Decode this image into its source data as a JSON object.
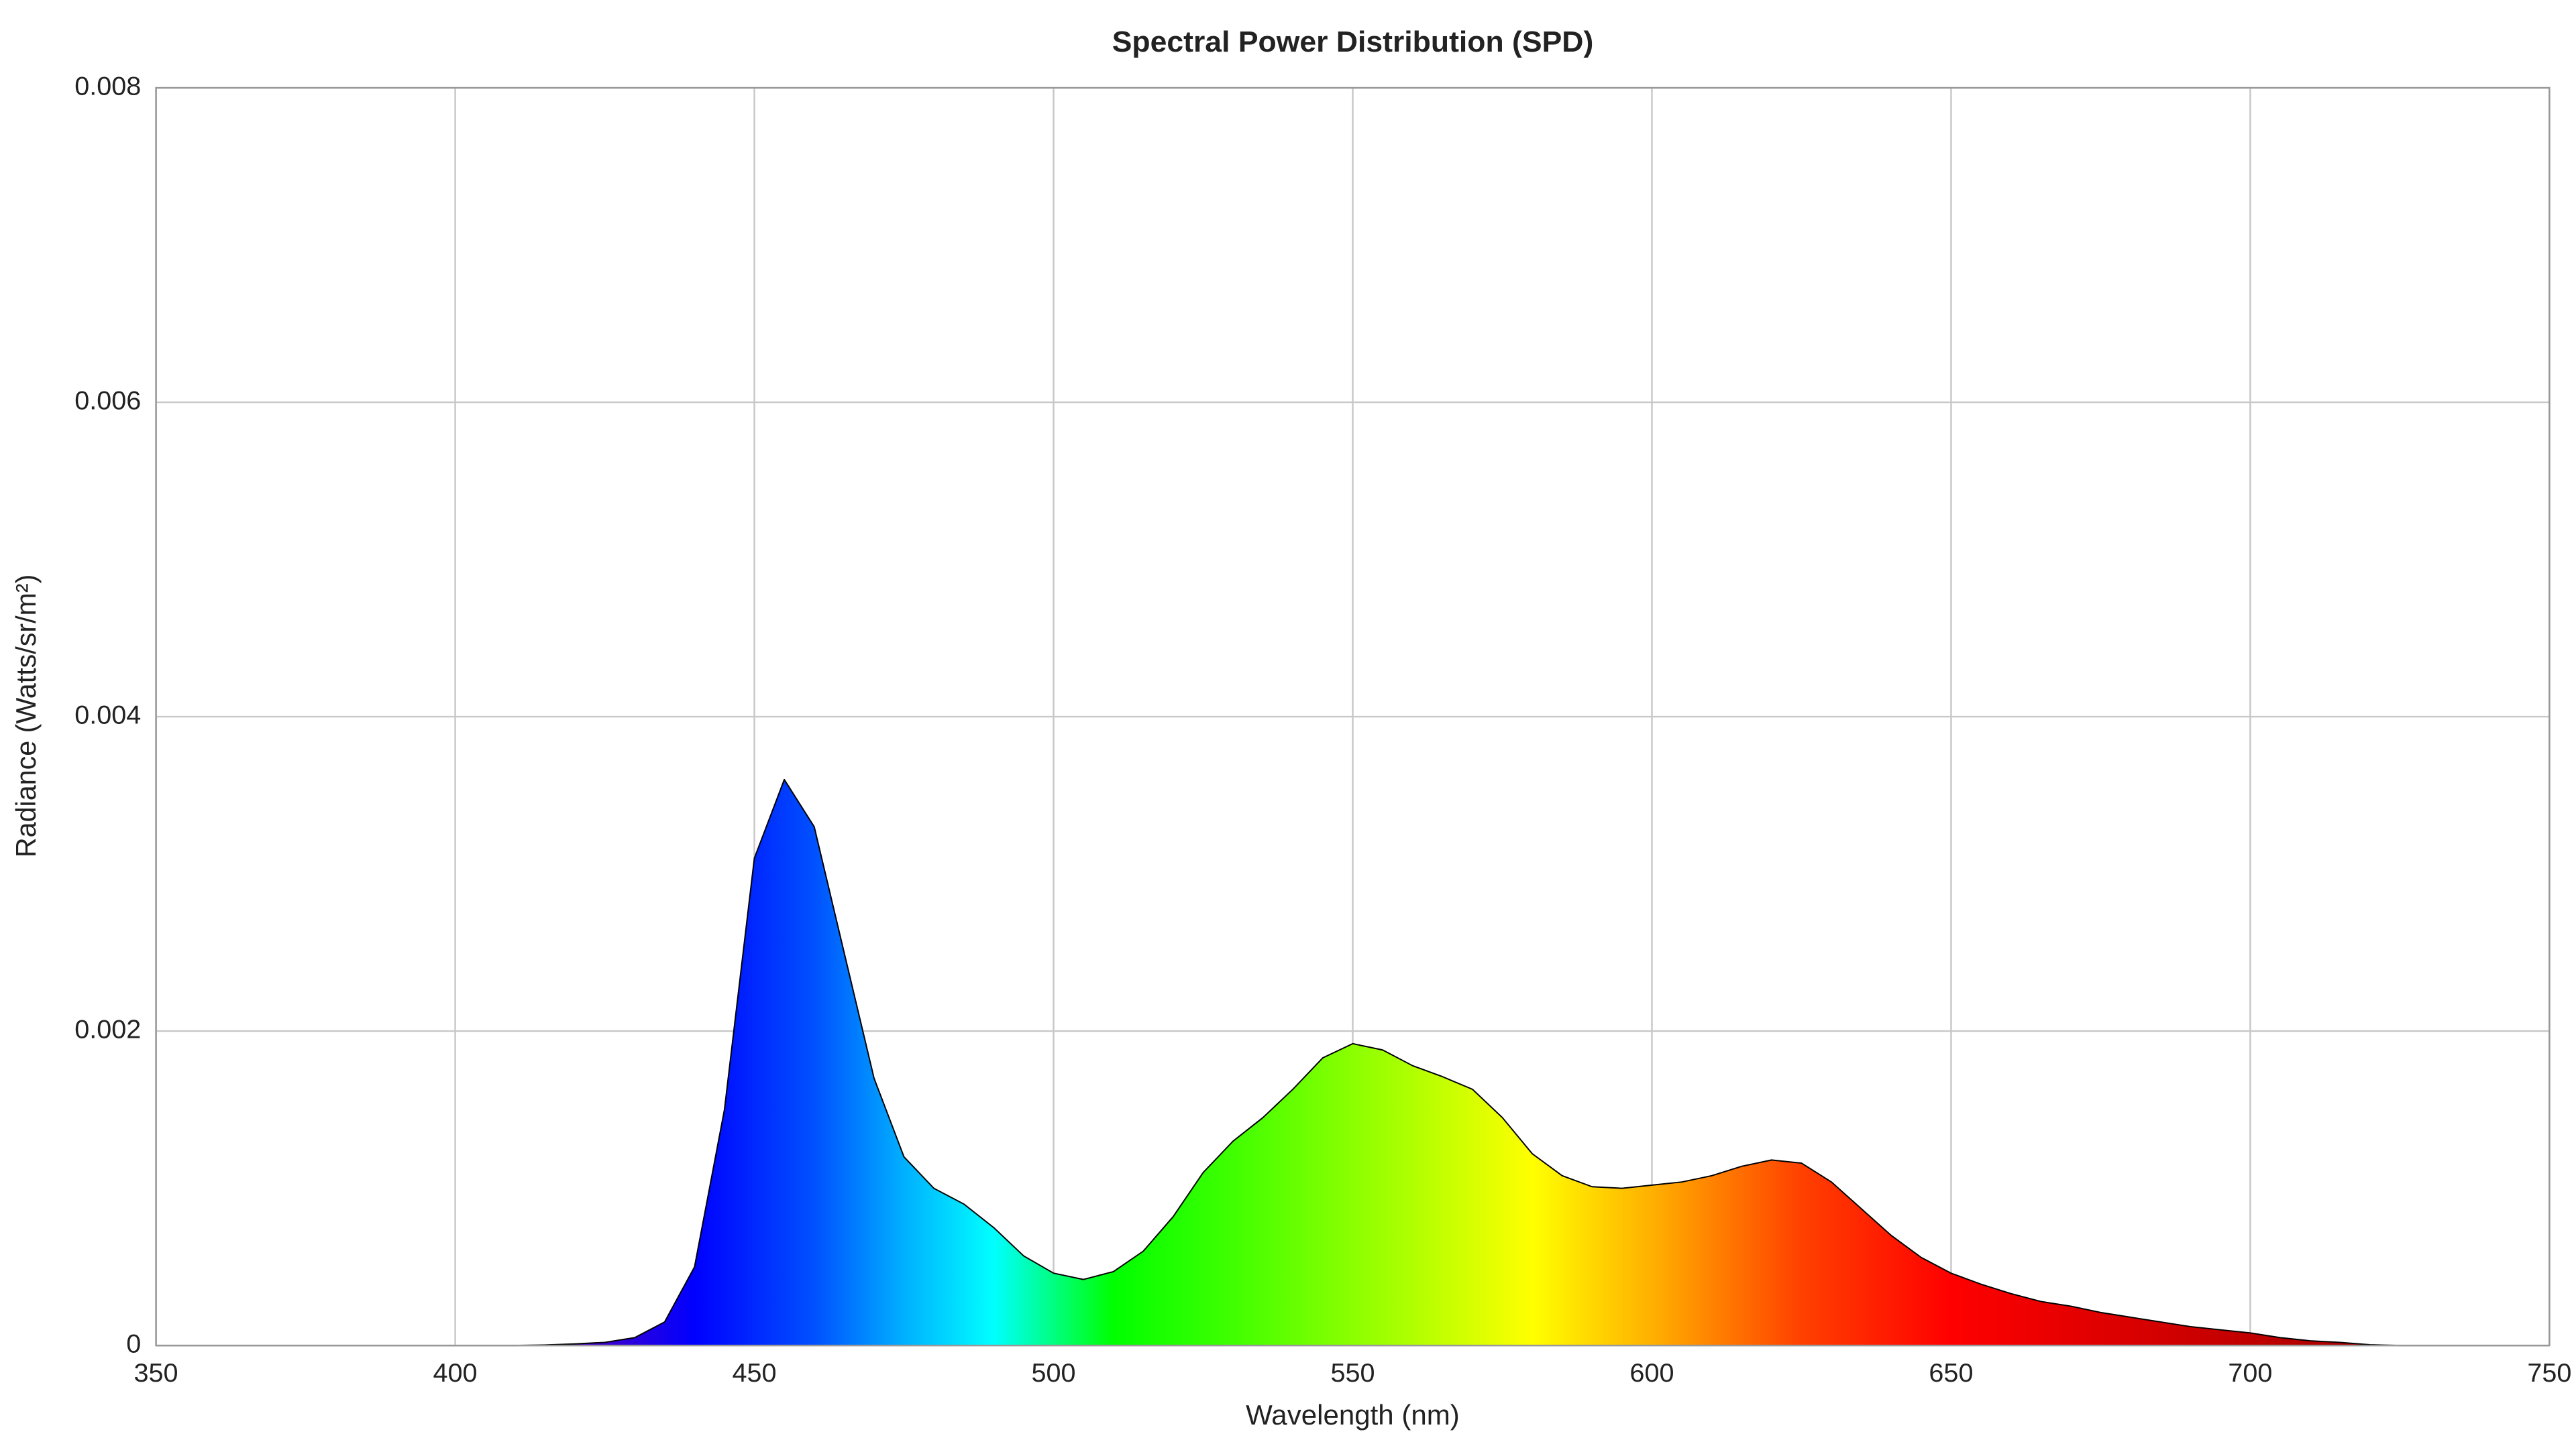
{
  "chart_data": {
    "type": "area",
    "title": "Spectral Power Distribution (SPD)",
    "x_label": "Wavelength (nm)",
    "y_label": "Radiance (Watts/sr/m²)",
    "x": [
      350,
      355,
      360,
      365,
      370,
      375,
      380,
      385,
      390,
      395,
      400,
      405,
      410,
      415,
      420,
      425,
      430,
      435,
      440,
      445,
      450,
      455,
      460,
      465,
      470,
      475,
      480,
      485,
      490,
      495,
      500,
      505,
      510,
      515,
      520,
      525,
      530,
      535,
      540,
      545,
      550,
      555,
      560,
      565,
      570,
      575,
      580,
      585,
      590,
      595,
      600,
      605,
      610,
      615,
      620,
      625,
      630,
      635,
      640,
      645,
      650,
      655,
      660,
      665,
      670,
      675,
      680,
      685,
      690,
      695,
      700,
      705,
      710,
      715,
      720,
      725,
      730,
      735,
      740,
      745,
      750
    ],
    "values": [
      0,
      0,
      0,
      0,
      0,
      0,
      0,
      0,
      0,
      0,
      0,
      0,
      0,
      3e-06,
      1e-05,
      2e-05,
      5e-05,
      0.00015,
      0.0005,
      0.0015,
      0.0031,
      0.0036,
      0.0033,
      0.0025,
      0.0017,
      0.0012,
      0.001,
      0.0009,
      0.00075,
      0.00057,
      0.00046,
      0.00042,
      0.00047,
      0.0006,
      0.00082,
      0.0011,
      0.0013,
      0.00145,
      0.00163,
      0.00183,
      0.00192,
      0.00188,
      0.00178,
      0.00171,
      0.00163,
      0.00145,
      0.00122,
      0.00108,
      0.00101,
      0.001,
      0.00102,
      0.00104,
      0.00108,
      0.00114,
      0.00118,
      0.00116,
      0.00104,
      0.00087,
      0.0007,
      0.00056,
      0.00046,
      0.00039,
      0.00033,
      0.00028,
      0.00025,
      0.00021,
      0.00018,
      0.00015,
      0.00012,
      0.0001,
      8e-05,
      5e-05,
      3e-05,
      2e-05,
      5e-06,
      0,
      0,
      0,
      0,
      0,
      0
    ],
    "xlim": [
      350,
      750
    ],
    "xticks": [
      350,
      400,
      450,
      500,
      550,
      600,
      650,
      700,
      750
    ],
    "ylim": [
      0,
      0.008
    ],
    "yticks": [
      0,
      0.002,
      0.004,
      0.006,
      0.008
    ],
    "grid": true,
    "line_color": "#000000"
  }
}
